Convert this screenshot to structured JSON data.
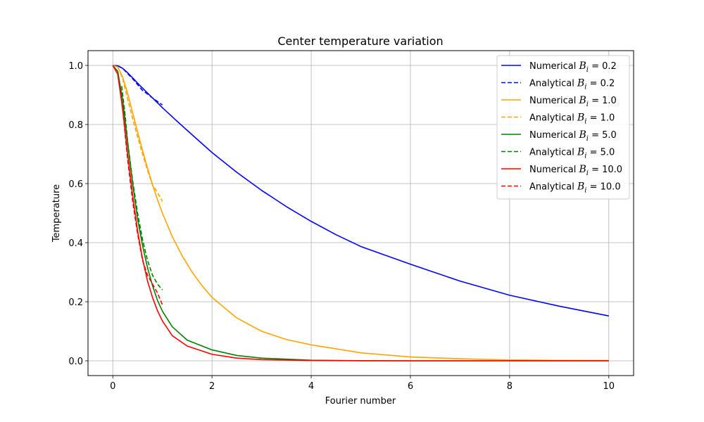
{
  "chart_data": {
    "type": "line",
    "title": "Center temperature variation",
    "xlabel": "Fourier number",
    "ylabel": "Temperature",
    "xlim": [
      -0.5,
      10.5
    ],
    "ylim": [
      -0.05,
      1.05
    ],
    "x_ticks": [
      0,
      2,
      4,
      6,
      8,
      10
    ],
    "y_ticks": [
      0.0,
      0.2,
      0.4,
      0.6,
      0.8,
      1.0
    ],
    "x_tick_labels": [
      "0",
      "2",
      "4",
      "6",
      "8",
      "10"
    ],
    "y_tick_labels": [
      "0.0",
      "0.2",
      "0.4",
      "0.6",
      "0.8",
      "1.0"
    ],
    "grid": true,
    "legend_position": "top-right",
    "colors": {
      "bi_0_2": "#0000ff",
      "bi_1_0": "#ffa500",
      "bi_5_0": "#008000",
      "bi_10_0": "#ff0000"
    },
    "series": [
      {
        "name": "Numerical B_i = 0.2",
        "legend_prefix": "Numerical",
        "bi_symbol": "B",
        "bi_subscript": "i",
        "bi_value": "0.2",
        "color": "#0000ff",
        "style": "solid",
        "x": [
          0,
          0.1,
          0.2,
          0.3,
          0.4,
          0.5,
          0.6,
          0.8,
          1.0,
          1.25,
          1.5,
          2,
          2.5,
          3,
          3.5,
          4,
          4.5,
          5,
          6,
          7,
          8,
          9,
          10
        ],
        "y": [
          1.0,
          0.999,
          0.99,
          0.975,
          0.958,
          0.94,
          0.923,
          0.89,
          0.857,
          0.818,
          0.78,
          0.705,
          0.638,
          0.577,
          0.522,
          0.472,
          0.427,
          0.387,
          0.327,
          0.27,
          0.222,
          0.185,
          0.152
        ]
      },
      {
        "name": "Analytical B_i = 0.2",
        "legend_prefix": "Analytical",
        "bi_symbol": "B",
        "bi_subscript": "i",
        "bi_value": "0.2",
        "color": "#0000ff",
        "style": "dashed",
        "x": [
          0.1,
          0.2,
          0.3,
          0.4,
          0.5,
          0.6,
          0.7,
          0.8,
          0.9,
          1.0
        ],
        "y": [
          0.998,
          0.99,
          0.972,
          0.955,
          0.935,
          0.915,
          0.903,
          0.89,
          0.878,
          0.866
        ]
      },
      {
        "name": "Numerical B_i = 1.0",
        "legend_prefix": "Numerical",
        "bi_symbol": "B",
        "bi_subscript": "i",
        "bi_value": "1.0",
        "color": "#ffa500",
        "style": "solid",
        "x": [
          0,
          0.1,
          0.2,
          0.3,
          0.4,
          0.5,
          0.6,
          0.7,
          0.8,
          0.9,
          1.0,
          1.2,
          1.4,
          1.6,
          1.8,
          2,
          2.5,
          3,
          3.5,
          4,
          5,
          6,
          7,
          8,
          9,
          10
        ],
        "y": [
          1.0,
          0.995,
          0.96,
          0.905,
          0.84,
          0.775,
          0.712,
          0.652,
          0.597,
          0.546,
          0.5,
          0.42,
          0.355,
          0.3,
          0.254,
          0.215,
          0.145,
          0.1,
          0.072,
          0.054,
          0.027,
          0.013,
          0.007,
          0.003,
          0.0015,
          0.001
        ]
      },
      {
        "name": "Analytical B_i = 1.0",
        "legend_prefix": "Analytical",
        "bi_symbol": "B",
        "bi_subscript": "i",
        "bi_value": "1.0",
        "color": "#ffa500",
        "style": "dashed",
        "x": [
          0.15,
          0.2,
          0.3,
          0.4,
          0.5,
          0.6,
          0.7,
          0.8,
          0.9,
          1.0
        ],
        "y": [
          0.975,
          0.955,
          0.885,
          0.82,
          0.758,
          0.7,
          0.645,
          0.595,
          0.57,
          0.54
        ]
      },
      {
        "name": "Numerical B_i = 5.0",
        "legend_prefix": "Numerical",
        "bi_symbol": "B",
        "bi_subscript": "i",
        "bi_value": "5.0",
        "color": "#008000",
        "style": "solid",
        "x": [
          0,
          0.1,
          0.2,
          0.3,
          0.4,
          0.5,
          0.6,
          0.7,
          0.8,
          0.9,
          1.0,
          1.2,
          1.5,
          2,
          2.5,
          3,
          4,
          5,
          6,
          7,
          8,
          9,
          10
        ],
        "y": [
          1.0,
          0.98,
          0.88,
          0.74,
          0.6,
          0.48,
          0.39,
          0.315,
          0.255,
          0.205,
          0.168,
          0.115,
          0.07,
          0.037,
          0.018,
          0.009,
          0.002,
          0.0005,
          0,
          0,
          0,
          0,
          0
        ]
      },
      {
        "name": "Analytical B_i = 5.0",
        "legend_prefix": "Analytical",
        "bi_symbol": "B",
        "bi_subscript": "i",
        "bi_value": "5.0",
        "color": "#008000",
        "style": "dashed",
        "x": [
          0.18,
          0.25,
          0.3,
          0.4,
          0.5,
          0.6,
          0.7,
          0.8,
          0.9,
          1.0
        ],
        "y": [
          0.93,
          0.83,
          0.74,
          0.61,
          0.5,
          0.41,
          0.34,
          0.29,
          0.26,
          0.24
        ]
      },
      {
        "name": "Numerical B_i = 10.0",
        "legend_prefix": "Numerical",
        "bi_symbol": "B",
        "bi_subscript": "i",
        "bi_value": "10.0",
        "color": "#ff0000",
        "style": "solid",
        "x": [
          0,
          0.1,
          0.2,
          0.3,
          0.4,
          0.5,
          0.6,
          0.7,
          0.8,
          0.9,
          1.0,
          1.2,
          1.5,
          2,
          2.5,
          3,
          4,
          5,
          6,
          7,
          8,
          9,
          10
        ],
        "y": [
          1.0,
          0.97,
          0.85,
          0.7,
          0.56,
          0.44,
          0.345,
          0.27,
          0.215,
          0.17,
          0.135,
          0.085,
          0.05,
          0.022,
          0.009,
          0.004,
          0.001,
          0,
          0,
          0,
          0,
          0,
          0
        ]
      },
      {
        "name": "Analytical B_i = 10.0",
        "legend_prefix": "Analytical",
        "bi_symbol": "B",
        "bi_subscript": "i",
        "bi_value": "10.0",
        "color": "#ff0000",
        "style": "dashed",
        "x": [
          0.2,
          0.3,
          0.4,
          0.5,
          0.6,
          0.7,
          0.8,
          0.9,
          1.0
        ],
        "y": [
          0.85,
          0.68,
          0.54,
          0.43,
          0.34,
          0.29,
          0.26,
          0.23,
          0.19
        ]
      }
    ]
  }
}
